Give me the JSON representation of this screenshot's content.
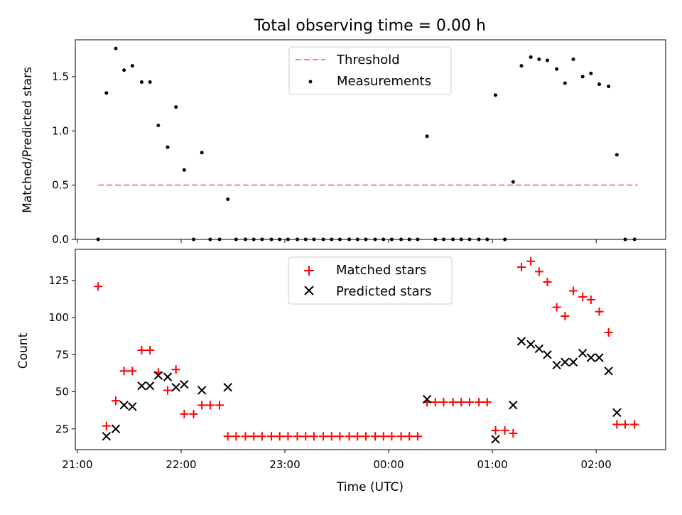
{
  "figure": {
    "title": "Total observing time = 0.00 h",
    "xlabel": "Time (UTC)"
  },
  "chart_data": [
    {
      "type": "scatter",
      "panel": "top",
      "ylabel": "Matched/Predicted stars",
      "ylim": [
        0,
        1.84
      ],
      "yticks": [
        0.0,
        0.5,
        1.0,
        1.5
      ],
      "ytick_labels": [
        "0.0",
        "0.5",
        "1.0",
        "1.5"
      ],
      "x_unit": "hours since 21:00 UTC",
      "xlim": [
        -0.02,
        5.67
      ],
      "legend_position": "upper-center",
      "threshold": {
        "name": "Threshold",
        "value": 0.5,
        "x_range": [
          0.2,
          5.4
        ],
        "color": "#ff7f7f"
      },
      "series": [
        {
          "name": "Measurements",
          "color": "#000000",
          "points": [
            [
              0.2,
              0
            ],
            [
              0.28,
              1.35
            ],
            [
              0.37,
              1.76
            ],
            [
              0.45,
              1.56
            ],
            [
              0.53,
              1.6
            ],
            [
              0.62,
              1.45
            ],
            [
              0.7,
              1.45
            ],
            [
              0.78,
              1.05
            ],
            [
              0.87,
              0.85
            ],
            [
              0.95,
              1.22
            ],
            [
              1.03,
              0.64
            ],
            [
              1.12,
              0
            ],
            [
              1.2,
              0.8
            ],
            [
              1.28,
              0
            ],
            [
              1.37,
              0
            ],
            [
              1.45,
              0.37
            ],
            [
              1.53,
              0
            ],
            [
              1.62,
              0
            ],
            [
              1.7,
              0
            ],
            [
              1.78,
              0
            ],
            [
              1.87,
              0
            ],
            [
              1.95,
              0
            ],
            [
              2.03,
              0
            ],
            [
              2.12,
              0
            ],
            [
              2.2,
              0
            ],
            [
              2.28,
              0
            ],
            [
              2.37,
              0
            ],
            [
              2.45,
              0
            ],
            [
              2.53,
              0
            ],
            [
              2.62,
              0
            ],
            [
              2.7,
              0
            ],
            [
              2.78,
              0
            ],
            [
              2.87,
              0
            ],
            [
              2.95,
              0
            ],
            [
              3.03,
              0
            ],
            [
              3.12,
              0
            ],
            [
              3.2,
              0
            ],
            [
              3.28,
              0
            ],
            [
              3.37,
              0.95
            ],
            [
              3.45,
              0
            ],
            [
              3.53,
              0
            ],
            [
              3.62,
              0
            ],
            [
              3.7,
              0
            ],
            [
              3.78,
              0
            ],
            [
              3.87,
              0
            ],
            [
              3.95,
              0
            ],
            [
              4.03,
              1.33
            ],
            [
              4.12,
              0
            ],
            [
              4.2,
              0.53
            ],
            [
              4.28,
              1.6
            ],
            [
              4.37,
              1.68
            ],
            [
              4.45,
              1.66
            ],
            [
              4.53,
              1.65
            ],
            [
              4.62,
              1.57
            ],
            [
              4.7,
              1.44
            ],
            [
              4.78,
              1.66
            ],
            [
              4.87,
              1.5
            ],
            [
              4.95,
              1.53
            ],
            [
              5.03,
              1.43
            ],
            [
              5.12,
              1.41
            ],
            [
              5.2,
              0.78
            ],
            [
              5.28,
              0
            ],
            [
              5.37,
              0
            ]
          ]
        }
      ]
    },
    {
      "type": "scatter",
      "panel": "bottom",
      "ylabel": "Count",
      "ylim": [
        11,
        146
      ],
      "yticks": [
        25,
        50,
        75,
        100,
        125
      ],
      "ytick_labels": [
        "25",
        "50",
        "75",
        "100",
        "125"
      ],
      "x_unit": "hours since 21:00 UTC",
      "xlim": [
        -0.02,
        5.67
      ],
      "xticks": [
        0,
        1,
        2,
        3,
        4,
        5
      ],
      "xtick_labels": [
        "21:00",
        "22:00",
        "23:00",
        "00:00",
        "01:00",
        "02:00"
      ],
      "legend_position": "upper-center",
      "series": [
        {
          "name": "Matched stars",
          "marker": "plus",
          "color": "#ff0000",
          "points": [
            [
              0.2,
              121
            ],
            [
              0.28,
              27
            ],
            [
              0.37,
              44
            ],
            [
              0.45,
              64
            ],
            [
              0.53,
              64
            ],
            [
              0.62,
              78
            ],
            [
              0.7,
              78
            ],
            [
              0.78,
              63
            ],
            [
              0.87,
              51
            ],
            [
              0.95,
              65
            ],
            [
              1.03,
              35
            ],
            [
              1.12,
              35
            ],
            [
              1.2,
              41
            ],
            [
              1.28,
              41
            ],
            [
              1.37,
              41
            ],
            [
              1.45,
              20
            ],
            [
              1.53,
              20
            ],
            [
              1.62,
              20
            ],
            [
              1.7,
              20
            ],
            [
              1.78,
              20
            ],
            [
              1.87,
              20
            ],
            [
              1.95,
              20
            ],
            [
              2.03,
              20
            ],
            [
              2.12,
              20
            ],
            [
              2.2,
              20
            ],
            [
              2.28,
              20
            ],
            [
              2.37,
              20
            ],
            [
              2.45,
              20
            ],
            [
              2.53,
              20
            ],
            [
              2.62,
              20
            ],
            [
              2.7,
              20
            ],
            [
              2.78,
              20
            ],
            [
              2.87,
              20
            ],
            [
              2.95,
              20
            ],
            [
              3.03,
              20
            ],
            [
              3.12,
              20
            ],
            [
              3.2,
              20
            ],
            [
              3.28,
              20
            ],
            [
              3.37,
              43
            ],
            [
              3.45,
              43
            ],
            [
              3.53,
              43
            ],
            [
              3.62,
              43
            ],
            [
              3.7,
              43
            ],
            [
              3.78,
              43
            ],
            [
              3.87,
              43
            ],
            [
              3.95,
              43
            ],
            [
              4.03,
              24
            ],
            [
              4.12,
              24
            ],
            [
              4.2,
              22
            ],
            [
              4.28,
              134
            ],
            [
              4.37,
              138
            ],
            [
              4.45,
              131
            ],
            [
              4.53,
              124
            ],
            [
              4.62,
              107
            ],
            [
              4.7,
              101
            ],
            [
              4.78,
              118
            ],
            [
              4.87,
              114
            ],
            [
              4.95,
              112
            ],
            [
              5.03,
              104
            ],
            [
              5.12,
              90
            ],
            [
              5.2,
              28
            ],
            [
              5.28,
              28
            ],
            [
              5.37,
              28
            ]
          ]
        },
        {
          "name": "Predicted stars",
          "marker": "x",
          "color": "#000000",
          "points": [
            [
              0.28,
              20
            ],
            [
              0.37,
              25
            ],
            [
              0.45,
              41
            ],
            [
              0.53,
              40
            ],
            [
              0.62,
              54
            ],
            [
              0.7,
              54
            ],
            [
              0.78,
              61
            ],
            [
              0.87,
              60
            ],
            [
              0.95,
              53
            ],
            [
              1.03,
              55
            ],
            [
              1.2,
              51
            ],
            [
              1.45,
              53
            ],
            [
              3.37,
              45
            ],
            [
              4.03,
              18
            ],
            [
              4.2,
              41
            ],
            [
              4.28,
              84
            ],
            [
              4.37,
              82
            ],
            [
              4.45,
              79
            ],
            [
              4.53,
              75
            ],
            [
              4.62,
              68
            ],
            [
              4.7,
              70
            ],
            [
              4.78,
              70
            ],
            [
              4.87,
              76
            ],
            [
              4.95,
              73
            ],
            [
              5.03,
              73
            ],
            [
              5.12,
              64
            ],
            [
              5.2,
              36
            ]
          ]
        }
      ]
    }
  ]
}
